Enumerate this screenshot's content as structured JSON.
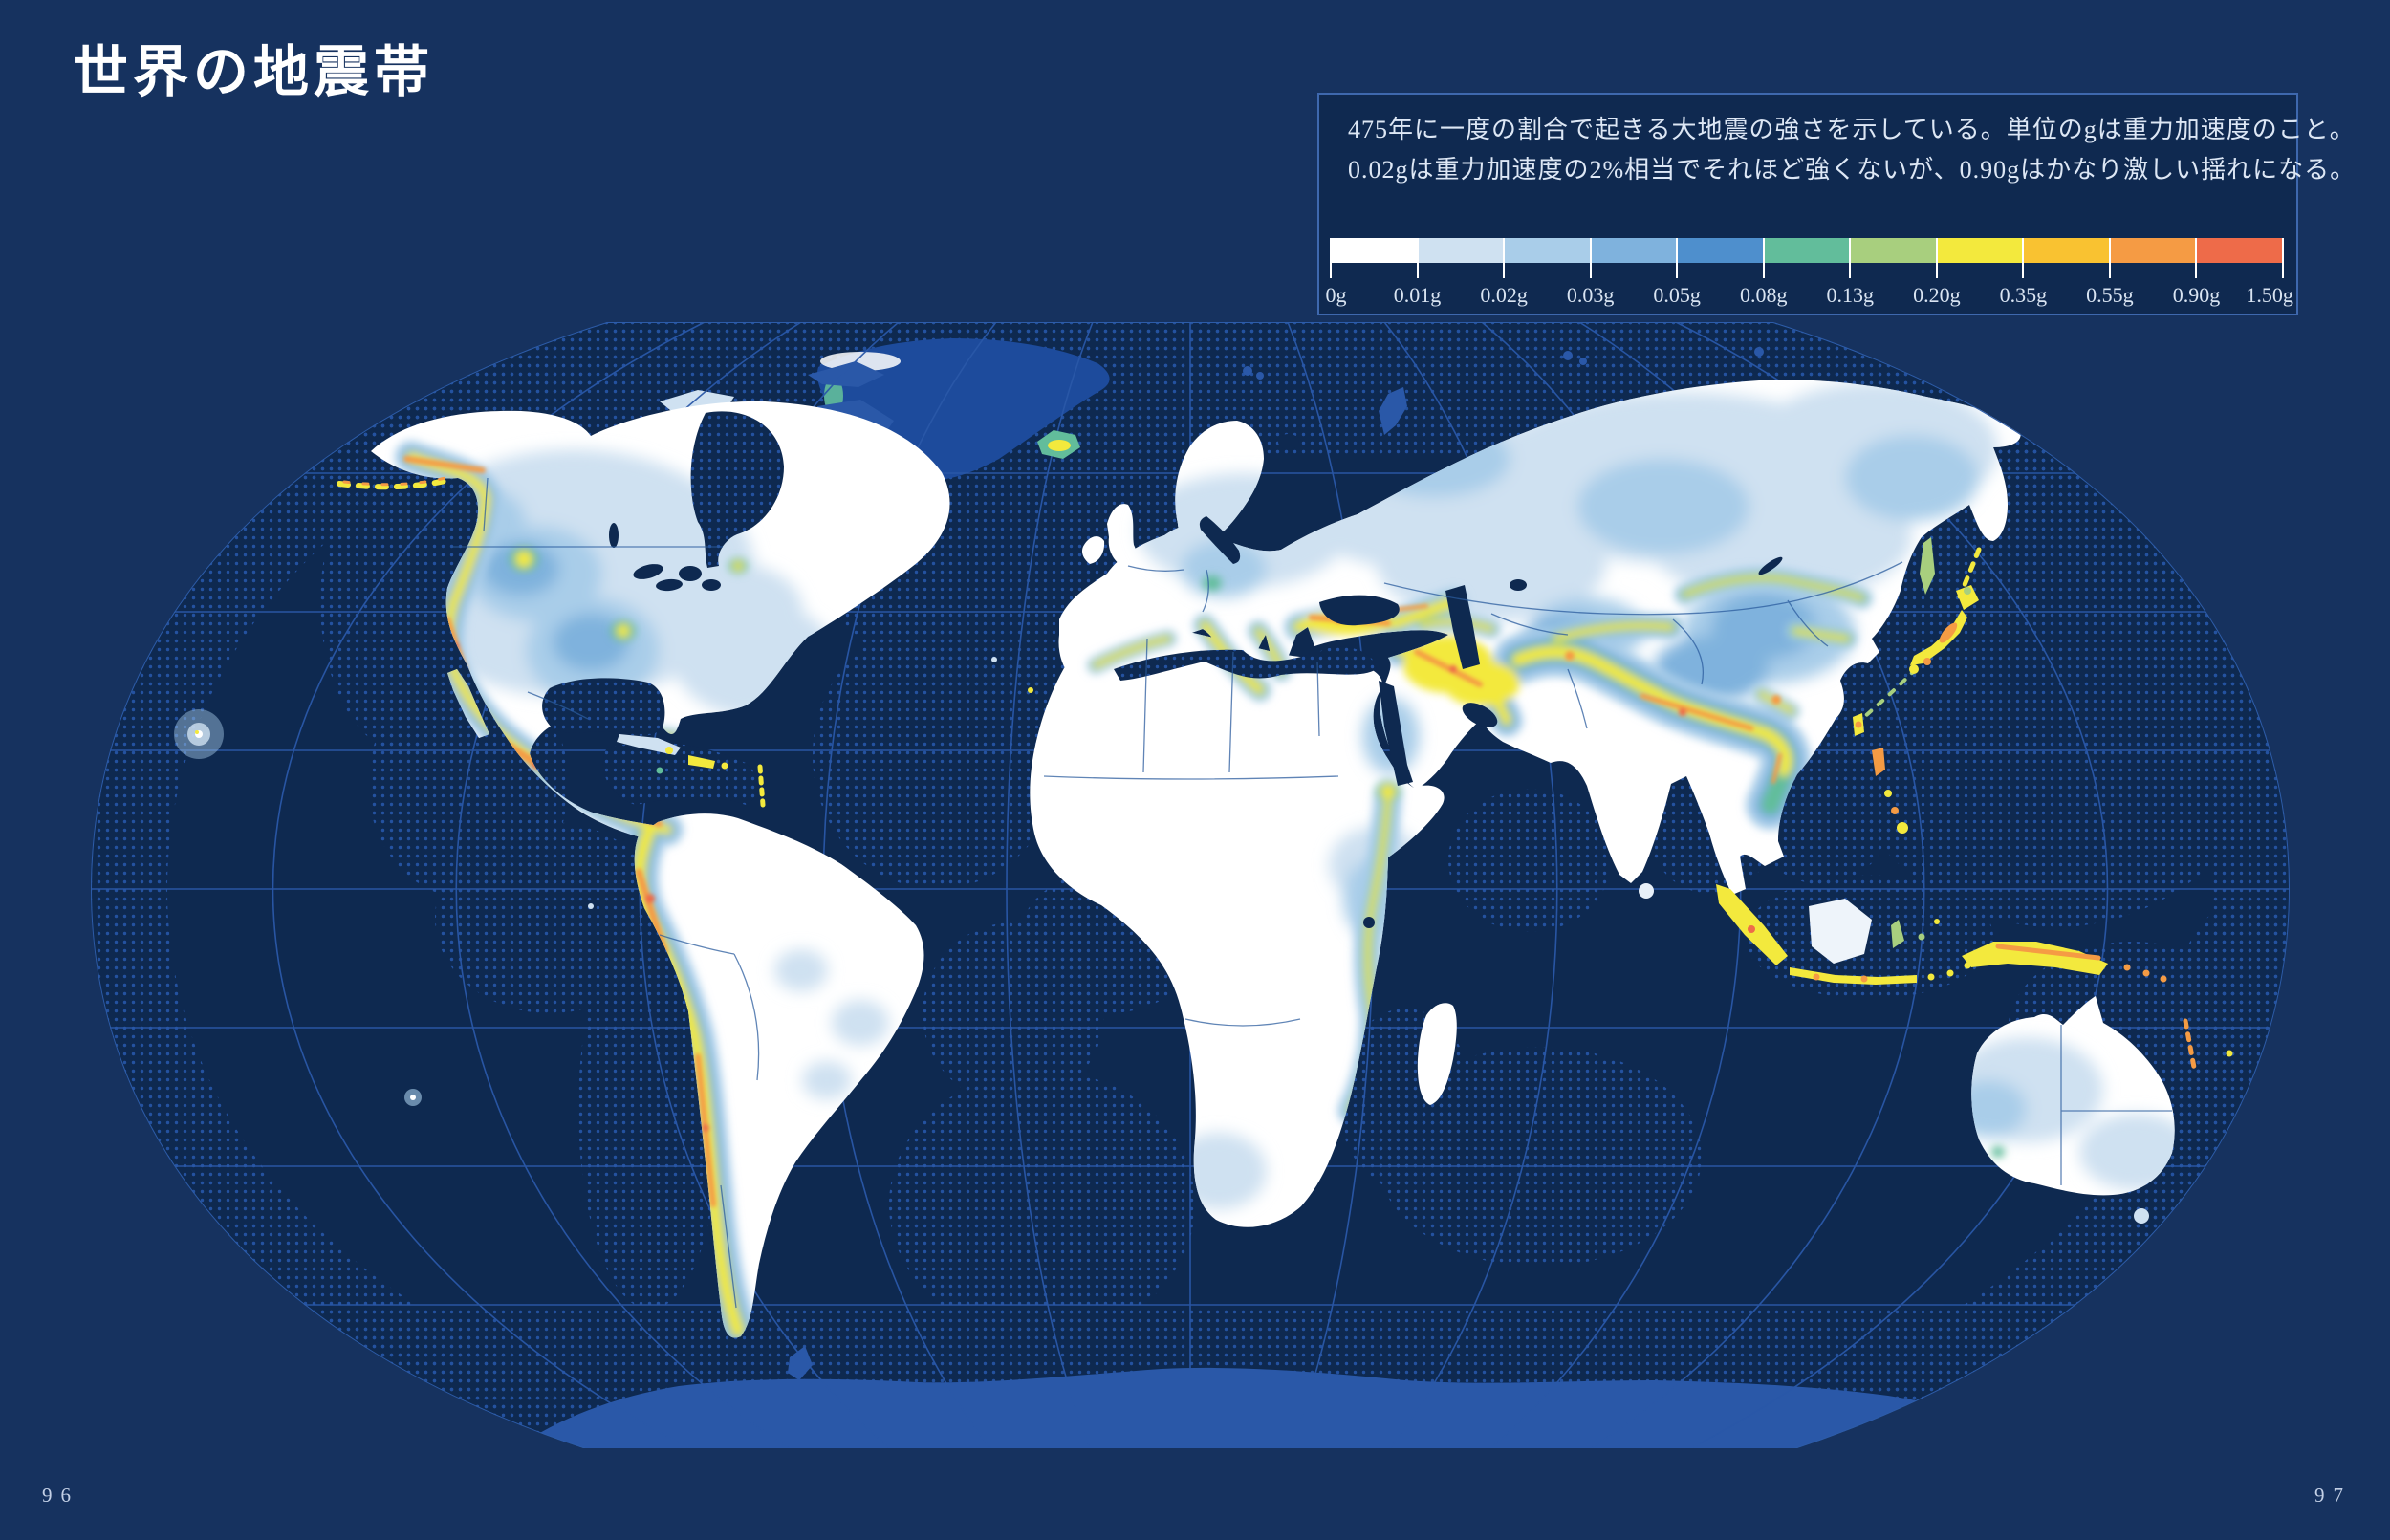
{
  "page": {
    "title": "世界の地震帯",
    "page_number_left": "96",
    "page_number_right": "97"
  },
  "legend": {
    "description_line1": "475年に一度の割合で起きる大地震の強さを示している。単位のgは重力加速度のこと。",
    "description_line2": "0.02gは重力加速度の2%相当でそれほど強くないが、0.90gはかなり激しい揺れになる。",
    "scale": {
      "unit": "g",
      "tick_labels": [
        "0g",
        "0.01g",
        "0.02g",
        "0.03g",
        "0.05g",
        "0.08g",
        "0.13g",
        "0.20g",
        "0.35g",
        "0.55g",
        "0.90g",
        "1.50g"
      ],
      "segment_colors": [
        "#ffffff",
        "#cfe1f1",
        "#a9cde9",
        "#7fb2dd",
        "#4e8fcd",
        "#62bd9b",
        "#a8cf7e",
        "#f3e93d",
        "#f9c231",
        "#f59b44",
        "#ee6b49"
      ]
    }
  },
  "map": {
    "name": "world-seismic-hazard-map",
    "projection": "robinson-like-oval",
    "colors": {
      "page_background": "#16325f",
      "ocean": "#0e2950",
      "ocean_dots": "#2452a0",
      "graticule": "#2a58a8",
      "ice_land": "#1d4b9c",
      "antarctica": "#2a58a8",
      "land": "#ffffff",
      "country_border": "#2b5c9e"
    }
  }
}
